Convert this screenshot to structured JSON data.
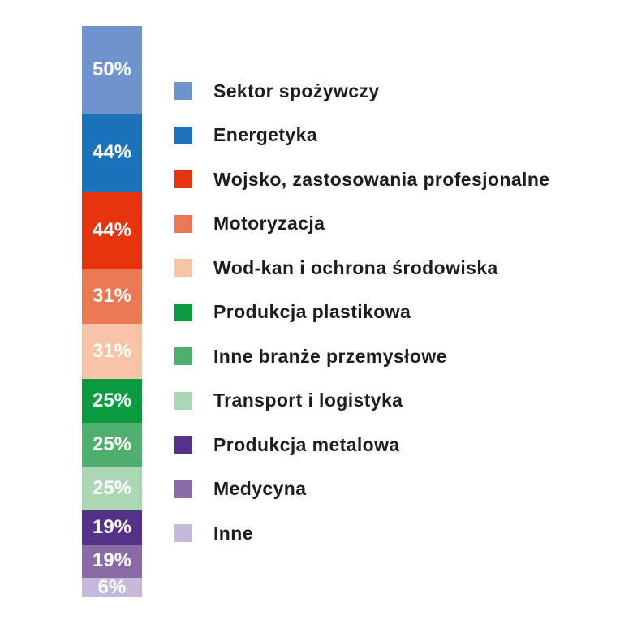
{
  "chart_data": {
    "type": "bar",
    "variant": "single-stacked-column",
    "unit": "%",
    "title": "",
    "xlabel": "",
    "ylabel": "",
    "legend_position": "right",
    "grid": false,
    "background_color": "#FFFFFF",
    "value_label_color": "#FFFFFF",
    "legend_text_color": "#1D1D1B",
    "items": [
      {
        "label": "Sektor spożywczy",
        "value": 50,
        "display": "50%",
        "color": "#6E93CD"
      },
      {
        "label": "Energetyka",
        "value": 44,
        "display": "44%",
        "color": "#1C73BB"
      },
      {
        "label": "Wojsko, zastosowania profesjonalne",
        "value": 44,
        "display": "44%",
        "color": "#E5330E"
      },
      {
        "label": "Motoryzacja",
        "value": 31,
        "display": "31%",
        "color": "#EB7A54"
      },
      {
        "label": "Wod-kan i ochrona środowiska",
        "value": 31,
        "display": "31%",
        "color": "#F7C4A7"
      },
      {
        "label": "Produkcja plastikowa",
        "value": 25,
        "display": "25%",
        "color": "#0A9B41"
      },
      {
        "label": "Inne branże przemysłowe",
        "value": 25,
        "display": "25%",
        "color": "#4FAF6F"
      },
      {
        "label": "Transport i logistyka",
        "value": 25,
        "display": "25%",
        "color": "#ACD7B4"
      },
      {
        "label": "Produkcja metalowa",
        "value": 19,
        "display": "19%",
        "color": "#533287"
      },
      {
        "label": "Medycyna",
        "value": 19,
        "display": "19%",
        "color": "#8A6BA6"
      },
      {
        "label": "Inne",
        "value": 6,
        "display": "6%",
        "color": "#C7B9DA"
      }
    ]
  }
}
